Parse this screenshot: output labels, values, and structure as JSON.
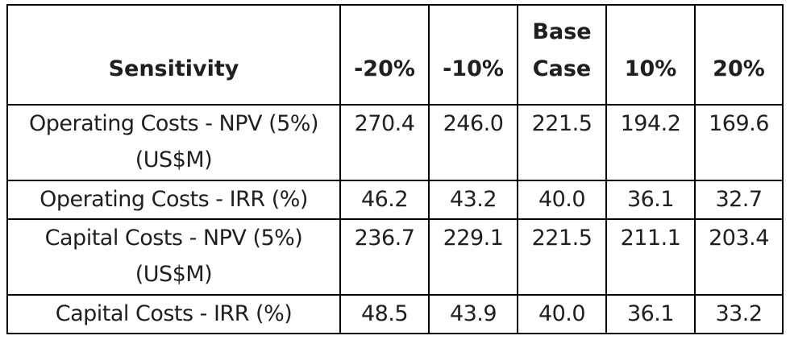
{
  "table": {
    "header": {
      "sensitivity": "Sensitivity",
      "minus20": "-20%",
      "minus10": "-10%",
      "base_line1": "Base",
      "base_line2": "Case",
      "plus10": "10%",
      "plus20": "20%"
    },
    "rows": [
      {
        "label": "Operating Costs - NPV (5%) (US$M)",
        "values": [
          "270.4",
          "246.0",
          "221.5",
          "194.2",
          "169.6"
        ]
      },
      {
        "label": "Operating Costs - IRR (%)",
        "values": [
          "46.2",
          "43.2",
          "40.0",
          "36.1",
          "32.7"
        ]
      },
      {
        "label": "Capital Costs - NPV (5%) (US$M)",
        "values": [
          "236.7",
          "229.1",
          "221.5",
          "211.1",
          "203.4"
        ]
      },
      {
        "label": "Capital Costs - IRR (%)",
        "values": [
          "48.5",
          "43.9",
          "40.0",
          "36.1",
          "33.2"
        ]
      }
    ]
  }
}
